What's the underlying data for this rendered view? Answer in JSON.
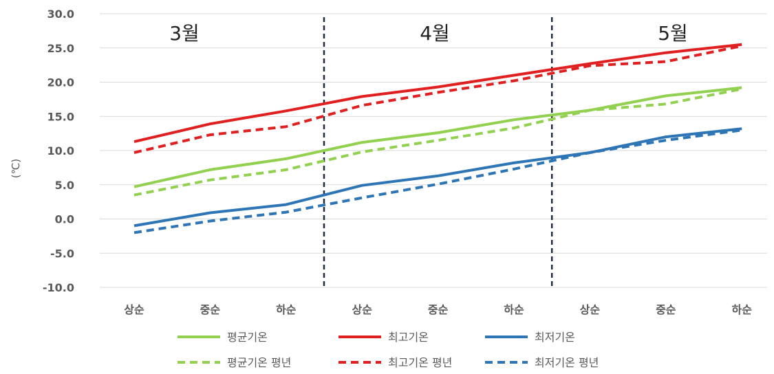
{
  "chart_data": {
    "type": "line",
    "ylabel": "(℃)",
    "ylim": [
      -10,
      30
    ],
    "yticks": [
      "30.0",
      "25.0",
      "20.0",
      "15.0",
      "10.0",
      "5.0",
      "0.0",
      "-5.0",
      "-10.0"
    ],
    "categories": [
      "상순",
      "중순",
      "하순",
      "상순",
      "중순",
      "하순",
      "상순",
      "중순",
      "하순"
    ],
    "months": [
      "3월",
      "4월",
      "5월"
    ],
    "grid": true,
    "legend_position": "bottom",
    "series": [
      {
        "name": "평균기온",
        "color": "#92d050",
        "dashed": false,
        "values": [
          4.7,
          7.2,
          8.8,
          11.2,
          12.6,
          14.5,
          15.9,
          18.0,
          19.2
        ]
      },
      {
        "name": "최고기온",
        "color": "#e02020",
        "dashed": false,
        "values": [
          11.3,
          13.9,
          15.8,
          17.9,
          19.3,
          21.0,
          22.7,
          24.3,
          25.5
        ]
      },
      {
        "name": "최저기온",
        "color": "#2e75b6",
        "dashed": false,
        "values": [
          -1.0,
          0.9,
          2.1,
          4.9,
          6.3,
          8.2,
          9.7,
          12.0,
          13.2
        ]
      },
      {
        "name": "평균기온 평년",
        "color": "#92d050",
        "dashed": true,
        "values": [
          3.5,
          5.7,
          7.2,
          9.8,
          11.5,
          13.3,
          15.9,
          16.8,
          19.0
        ]
      },
      {
        "name": "최고기온 평년",
        "color": "#e02020",
        "dashed": true,
        "values": [
          9.7,
          12.3,
          13.5,
          16.6,
          18.5,
          20.2,
          22.4,
          23.0,
          25.3
        ]
      },
      {
        "name": "최저기온 평년",
        "color": "#2e75b6",
        "dashed": true,
        "values": [
          -2.0,
          -0.3,
          1.0,
          3.1,
          5.1,
          7.3,
          9.7,
          11.5,
          13.0
        ]
      }
    ]
  }
}
